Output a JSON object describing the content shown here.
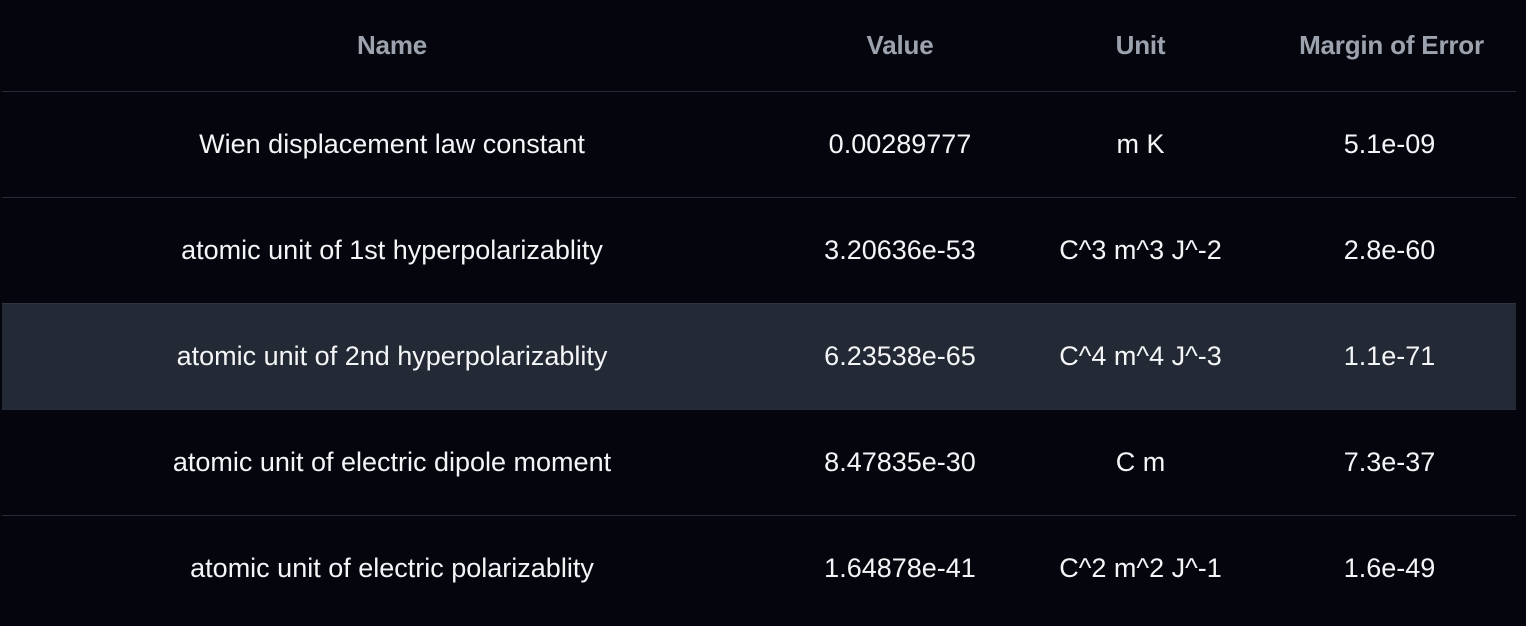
{
  "table": {
    "columns": [
      "Name",
      "Value",
      "Unit",
      "Margin of Error"
    ],
    "rows": [
      {
        "name": "Wien displacement law constant",
        "value": "0.00289777",
        "unit": "m K",
        "margin_of_error": "5.1e-09"
      },
      {
        "name": "atomic unit of 1st hyperpolarizablity",
        "value": "3.20636e-53",
        "unit": "C^3 m^3 J^-2",
        "margin_of_error": "2.8e-60"
      },
      {
        "name": "atomic unit of 2nd hyperpolarizablity",
        "value": "6.23538e-65",
        "unit": "C^4 m^4 J^-3",
        "margin_of_error": "1.1e-71"
      },
      {
        "name": "atomic unit of electric dipole moment",
        "value": "8.47835e-30",
        "unit": "C m",
        "margin_of_error": "7.3e-37"
      },
      {
        "name": "atomic unit of electric polarizablity",
        "value": "1.64878e-41",
        "unit": "C^2 m^2 J^-1",
        "margin_of_error": "1.6e-49"
      }
    ],
    "highlighted_row_index": 2
  },
  "colors": {
    "background": "#05060d",
    "header_text": "#9ca3af",
    "row_text": "#f4f5f7",
    "row_divider": "#262c37",
    "highlight_row": "#232935"
  }
}
